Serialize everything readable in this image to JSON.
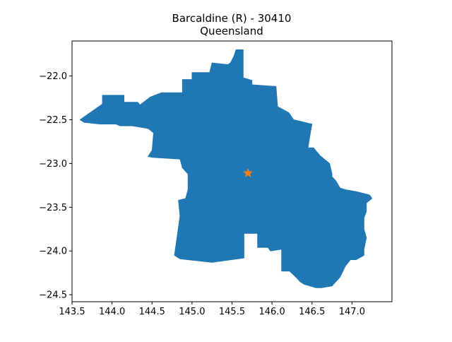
{
  "chart_data": {
    "type": "map",
    "title": [
      "Barcaldine (R) - 30410",
      "Queensland"
    ],
    "xlim": [
      143.5,
      147.5
    ],
    "ylim": [
      -24.58,
      -21.6
    ],
    "xticks": [
      143.5,
      144.0,
      144.5,
      145.0,
      145.5,
      146.0,
      146.5,
      147.0
    ],
    "xtick_labels": [
      "143.5",
      "144.0",
      "144.5",
      "145.0",
      "145.5",
      "146.0",
      "146.5",
      "147.0"
    ],
    "yticks": [
      -22.0,
      -22.5,
      -23.0,
      -23.5,
      -24.0,
      -24.5
    ],
    "ytick_labels": [
      "−22.0",
      "−22.5",
      "−23.0",
      "−23.5",
      "−24.0",
      "−24.5"
    ],
    "region_color": "#1f77b4",
    "marker_color": "#ff7f0e",
    "marker": {
      "shape": "star",
      "lon": 145.7,
      "lat": -23.11
    },
    "region_boundary": [
      [
        143.6,
        -22.5
      ],
      [
        143.88,
        -22.32
      ],
      [
        143.88,
        -22.22
      ],
      [
        144.15,
        -22.22
      ],
      [
        144.15,
        -22.3
      ],
      [
        144.32,
        -22.3
      ],
      [
        144.35,
        -22.33
      ],
      [
        144.48,
        -22.24
      ],
      [
        144.62,
        -22.19
      ],
      [
        144.88,
        -22.19
      ],
      [
        144.88,
        -22.04
      ],
      [
        145.0,
        -22.04
      ],
      [
        145.0,
        -21.96
      ],
      [
        145.22,
        -21.96
      ],
      [
        145.25,
        -21.85
      ],
      [
        145.45,
        -21.87
      ],
      [
        145.48,
        -21.85
      ],
      [
        145.52,
        -21.78
      ],
      [
        145.55,
        -21.7
      ],
      [
        145.64,
        -21.7
      ],
      [
        145.64,
        -22.02
      ],
      [
        145.75,
        -22.05
      ],
      [
        145.75,
        -22.1
      ],
      [
        146.05,
        -22.12
      ],
      [
        146.07,
        -22.35
      ],
      [
        146.21,
        -22.42
      ],
      [
        146.27,
        -22.5
      ],
      [
        146.5,
        -22.55
      ],
      [
        146.48,
        -22.65
      ],
      [
        146.45,
        -22.82
      ],
      [
        146.52,
        -22.82
      ],
      [
        146.6,
        -22.91
      ],
      [
        146.72,
        -23.0
      ],
      [
        146.75,
        -23.12
      ],
      [
        146.75,
        -23.15
      ],
      [
        146.8,
        -23.2
      ],
      [
        146.85,
        -23.28
      ],
      [
        146.92,
        -23.3
      ],
      [
        147.05,
        -23.32
      ],
      [
        147.22,
        -23.36
      ],
      [
        147.25,
        -23.4
      ],
      [
        147.18,
        -23.45
      ],
      [
        147.18,
        -23.55
      ],
      [
        147.15,
        -23.62
      ],
      [
        147.15,
        -23.75
      ],
      [
        147.18,
        -23.85
      ],
      [
        147.15,
        -23.98
      ],
      [
        147.15,
        -24.05
      ],
      [
        147.05,
        -24.1
      ],
      [
        146.98,
        -24.1
      ],
      [
        146.92,
        -24.17
      ],
      [
        146.85,
        -24.3
      ],
      [
        146.8,
        -24.35
      ],
      [
        146.75,
        -24.4
      ],
      [
        146.62,
        -24.42
      ],
      [
        146.55,
        -24.42
      ],
      [
        146.4,
        -24.38
      ],
      [
        146.35,
        -24.35
      ],
      [
        146.3,
        -24.3
      ],
      [
        146.22,
        -24.23
      ],
      [
        146.12,
        -24.23
      ],
      [
        146.12,
        -23.98
      ],
      [
        145.98,
        -24.0
      ],
      [
        145.95,
        -23.96
      ],
      [
        145.82,
        -23.96
      ],
      [
        145.82,
        -23.8
      ],
      [
        145.65,
        -23.8
      ],
      [
        145.65,
        -24.08
      ],
      [
        145.25,
        -24.13
      ],
      [
        144.85,
        -24.09
      ],
      [
        144.78,
        -24.05
      ],
      [
        144.85,
        -23.6
      ],
      [
        144.83,
        -23.42
      ],
      [
        144.92,
        -23.4
      ],
      [
        144.95,
        -23.3
      ],
      [
        144.95,
        -23.12
      ],
      [
        144.88,
        -23.05
      ],
      [
        144.85,
        -22.95
      ],
      [
        144.5,
        -22.93
      ],
      [
        144.45,
        -22.92
      ],
      [
        144.5,
        -22.85
      ],
      [
        144.52,
        -22.65
      ],
      [
        144.45,
        -22.6
      ],
      [
        144.25,
        -22.57
      ],
      [
        144.1,
        -22.57
      ],
      [
        144.05,
        -22.55
      ],
      [
        143.85,
        -22.55
      ],
      [
        143.65,
        -22.53
      ]
    ]
  }
}
